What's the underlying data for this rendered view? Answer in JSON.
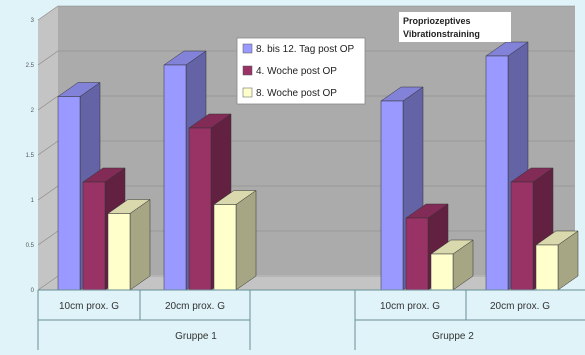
{
  "chart_data": {
    "type": "bar",
    "categories": [
      "10cm prox. G",
      "20cm prox. G",
      "10cm prox. G",
      "20cm prox. G"
    ],
    "groups": [
      {
        "name": "Gruppe 1",
        "categories": [
          0,
          1
        ]
      },
      {
        "name": "Gruppe 2",
        "categories": [
          2,
          3
        ]
      }
    ],
    "series": [
      {
        "name": "8. bis 12. Tag post OP",
        "color": "#9999ff",
        "values": [
          2.15,
          2.5,
          2.1,
          2.6
        ]
      },
      {
        "name": "4. Woche post OP",
        "color": "#993366",
        "values": [
          1.2,
          1.8,
          0.8,
          1.2
        ]
      },
      {
        "name": "8. Woche post OP",
        "color": "#ffffcc",
        "values": [
          0.85,
          0.95,
          0.4,
          0.5
        ]
      }
    ],
    "yticks": [
      "0",
      "0.5",
      "1",
      "1.5",
      "2",
      "2.5",
      "3"
    ],
    "ylim": [
      0,
      3
    ],
    "legend_position": "top-center",
    "annotation": [
      "Propriozeptives",
      "Vibrationstraining"
    ],
    "grid": true,
    "title": "",
    "xlabel": "",
    "ylabel": ""
  }
}
